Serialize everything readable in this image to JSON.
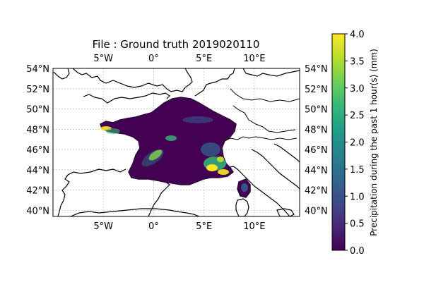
{
  "map": {
    "title": "File : Ground truth 2019020110",
    "lon_ticks": [
      "5°W",
      "0°",
      "5°E",
      "10°E"
    ],
    "lat_ticks": [
      "54°N",
      "52°N",
      "50°N",
      "48°N",
      "46°N",
      "44°N",
      "42°N",
      "40°N"
    ],
    "lon_values": [
      -5,
      0,
      5,
      10
    ],
    "lat_values": [
      54,
      52,
      50,
      48,
      46,
      44,
      42,
      40
    ],
    "extent": {
      "lon_min": -10,
      "lon_max": 14.5,
      "lat_min": 39.4,
      "lat_max": 54.0
    },
    "grid": true,
    "region": "France",
    "field_min_color": "#440154",
    "coast_color": "#000000",
    "grid_color": "#b0b0b0"
  },
  "colorbar": {
    "label": "Precipitation during the past 1 hour(s) (mm)",
    "min": 0.0,
    "max": 4.0,
    "tick_labels": [
      "0.0",
      "0.5",
      "1.0",
      "1.5",
      "2.0",
      "2.5",
      "3.0",
      "3.5",
      "4.0"
    ],
    "tick_values": [
      0.0,
      0.5,
      1.0,
      1.5,
      2.0,
      2.5,
      3.0,
      3.5,
      4.0
    ],
    "colormap": "viridis",
    "stops": [
      "#440154",
      "#482878",
      "#3e4a89",
      "#31688e",
      "#26828e",
      "#1f9e89",
      "#35b779",
      "#6ece58",
      "#b5de2b",
      "#fde725"
    ]
  }
}
